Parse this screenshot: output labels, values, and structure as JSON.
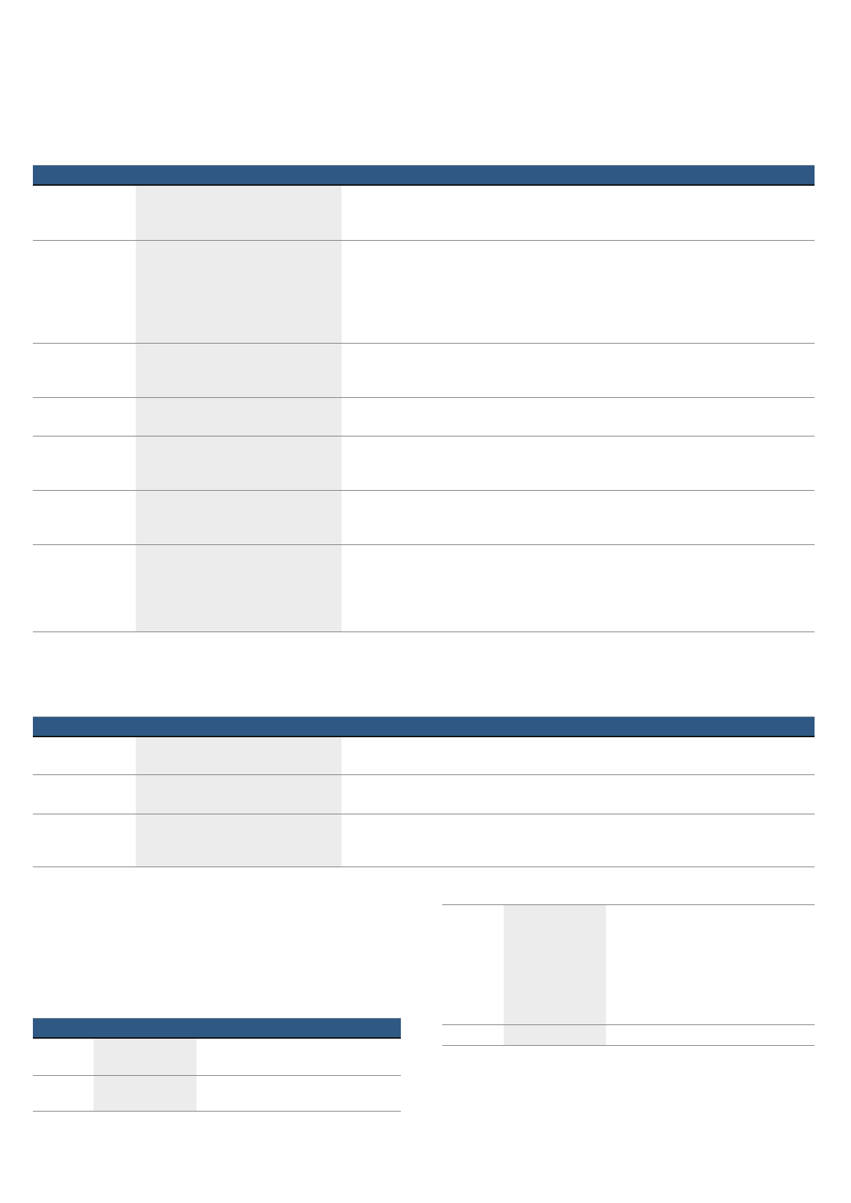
{
  "colors": {
    "header_fill": "#2f5984",
    "shaded_column": "#ececec",
    "rule": "#7f7f7f"
  },
  "tables": [
    {
      "has_header": true,
      "rows": 7
    },
    {
      "has_header": true,
      "rows": 3
    },
    {
      "has_header": false,
      "rows": 2
    },
    {
      "has_header": true,
      "rows": 2
    }
  ]
}
